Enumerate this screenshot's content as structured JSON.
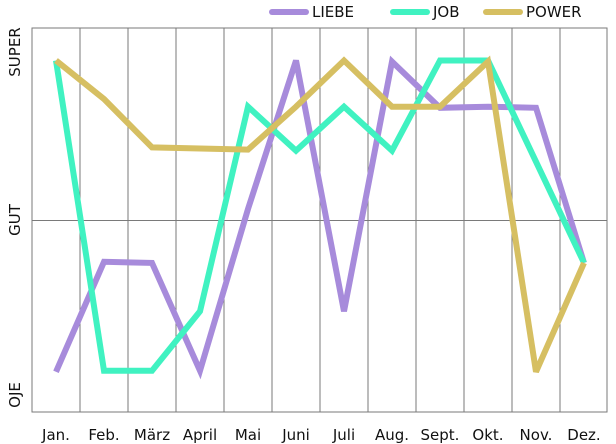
{
  "chart_data": {
    "type": "line",
    "categories": [
      "Jan.",
      "Feb.",
      "März",
      "April",
      "Mai",
      "Juni",
      "Juli",
      "Aug.",
      "Sept.",
      "Okt.",
      "Nov.",
      "Dez."
    ],
    "y_ticks": [
      {
        "label": "OJE",
        "value": 0
      },
      {
        "label": "GUT",
        "value": 1.5
      },
      {
        "label": "SUPER",
        "value": 3
      }
    ],
    "ylim": [
      0,
      3
    ],
    "grid": "vertical and horizontal",
    "legend": "top-right",
    "series": [
      {
        "name": "LIEBE",
        "color": "#a78bdb",
        "values": [
          0.12,
          1.12,
          1.11,
          0.13,
          1.6,
          2.95,
          0.67,
          2.94,
          2.52,
          2.53,
          2.52,
          1.11
        ]
      },
      {
        "name": "JOB",
        "color": "#40f2c1",
        "values": [
          2.95,
          0.13,
          0.13,
          0.67,
          2.53,
          2.13,
          2.53,
          2.13,
          2.95,
          2.95,
          2.03,
          1.11
        ]
      },
      {
        "name": "POWER",
        "color": "#d6bf62",
        "values": [
          2.95,
          2.6,
          2.16,
          2.15,
          2.14,
          2.53,
          2.95,
          2.53,
          2.53,
          2.94,
          0.12,
          1.11
        ]
      }
    ]
  }
}
